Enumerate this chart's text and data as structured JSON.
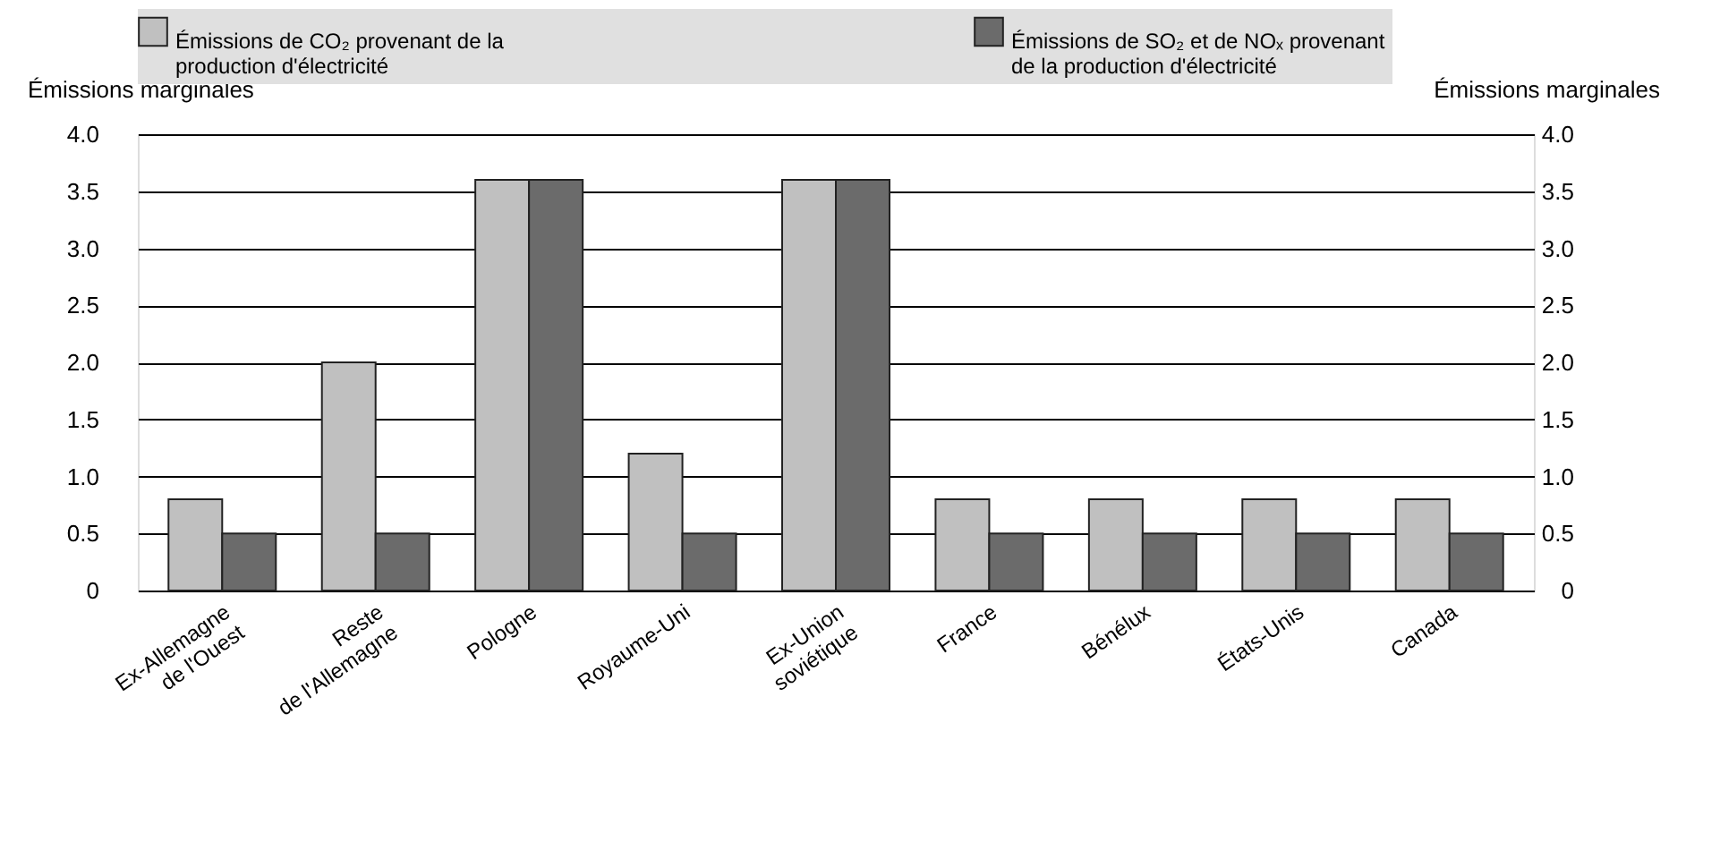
{
  "chart_data": {
    "type": "bar",
    "categories": [
      "Ex-Allemagne\nde l'Ouest",
      "Reste\nde l'Allemagne",
      "Pologne",
      "Royaume-Uni",
      "Ex-Union\nsoviétique",
      "France",
      "Bénélux",
      "États-Unis",
      "Canada"
    ],
    "series": [
      {
        "name": "Émissions de CO₂ provenant de la production d'électricité",
        "color": "#c0c0c0",
        "values": [
          0.8,
          2.0,
          3.6,
          1.2,
          3.6,
          0.8,
          0.8,
          0.8,
          0.8
        ]
      },
      {
        "name": "Émissions de SO₂ et de NOₓ provenant de la production d'électricité",
        "color": "#6b6b6b",
        "values": [
          0.5,
          0.5,
          3.6,
          0.5,
          3.6,
          0.5,
          0.5,
          0.5,
          0.5
        ]
      }
    ],
    "ylabel": "Émissions marginales",
    "y2label": "Émissions marginales",
    "ylim": [
      0,
      4
    ],
    "yticks": [
      0,
      0.5,
      {
        "value": 1,
        "label": "1.0"
      },
      1.5,
      {
        "value": 2,
        "label": "2.0"
      },
      2.5,
      {
        "value": 3,
        "label": "3.0"
      },
      3.5,
      {
        "value": 4,
        "label": "4.0"
      }
    ],
    "y2lim": [
      0,
      4
    ],
    "y2ticks": [
      0,
      0.5,
      {
        "value": 1,
        "label": "1.0"
      },
      1.5,
      {
        "value": 2,
        "label": "2.0"
      },
      2.5,
      {
        "value": 3,
        "label": "3.0"
      },
      3.5,
      {
        "value": 4,
        "label": "4.0"
      }
    ],
    "grid": "y",
    "legend": "top"
  }
}
